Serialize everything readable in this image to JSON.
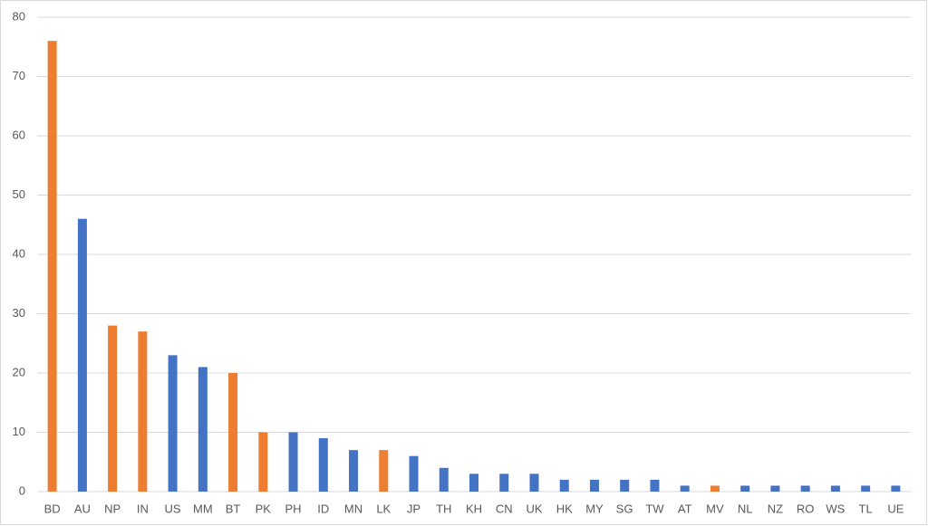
{
  "chart_data": {
    "type": "bar",
    "categories": [
      "BD",
      "AU",
      "NP",
      "IN",
      "US",
      "MM",
      "BT",
      "PK",
      "PH",
      "ID",
      "MN",
      "LK",
      "JP",
      "TH",
      "KH",
      "CN",
      "UK",
      "HK",
      "MY",
      "SG",
      "TW",
      "AT",
      "MV",
      "NL",
      "NZ",
      "RO",
      "WS",
      "TL",
      "UE"
    ],
    "values": [
      76,
      46,
      28,
      27,
      23,
      21,
      20,
      10,
      10,
      9,
      7,
      7,
      6,
      4,
      3,
      3,
      3,
      2,
      2,
      2,
      2,
      1,
      1,
      1,
      1,
      1,
      1,
      1,
      1
    ],
    "colors": [
      "#ed7d31",
      "#4472c4",
      "#ed7d31",
      "#ed7d31",
      "#4472c4",
      "#4472c4",
      "#ed7d31",
      "#ed7d31",
      "#4472c4",
      "#4472c4",
      "#4472c4",
      "#ed7d31",
      "#4472c4",
      "#4472c4",
      "#4472c4",
      "#4472c4",
      "#4472c4",
      "#4472c4",
      "#4472c4",
      "#4472c4",
      "#4472c4",
      "#4472c4",
      "#ed7d31",
      "#4472c4",
      "#4472c4",
      "#4472c4",
      "#4472c4",
      "#4472c4",
      "#4472c4"
    ],
    "ylim": [
      0,
      80
    ],
    "yticks": [
      0,
      10,
      20,
      30,
      40,
      50,
      60,
      70,
      80
    ],
    "grid": true
  }
}
